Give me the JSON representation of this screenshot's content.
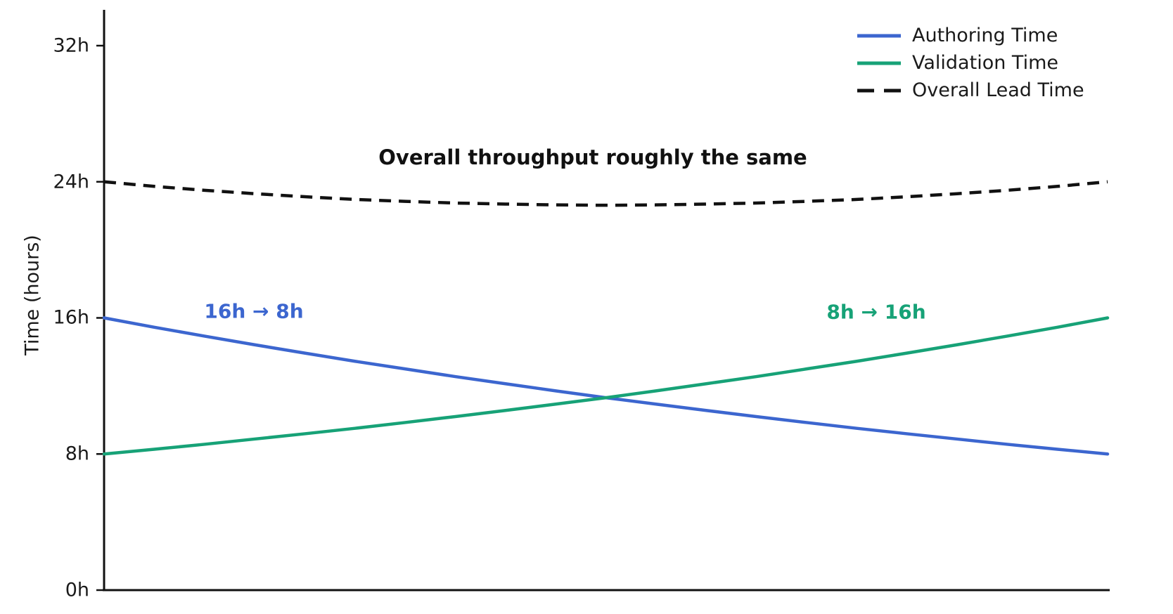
{
  "chart_data": {
    "type": "line",
    "title": "",
    "ylabel": "Time (hours)",
    "xlabel": "",
    "ylim": [
      0,
      32
    ],
    "xlim": [
      0,
      1
    ],
    "grid": false,
    "x_axis_tick_labels": [],
    "yticks": [
      {
        "value": 0,
        "label": "0h"
      },
      {
        "value": 8,
        "label": "8h"
      },
      {
        "value": 16,
        "label": "16h"
      },
      {
        "value": 24,
        "label": "24h"
      },
      {
        "value": 32,
        "label": "32h"
      }
    ],
    "x": [
      0,
      0.05,
      0.1,
      0.15,
      0.2,
      0.25,
      0.3,
      0.35,
      0.4,
      0.45,
      0.5,
      0.55,
      0.6,
      0.65,
      0.7,
      0.75,
      0.8,
      0.85,
      0.9,
      0.95,
      1
    ],
    "series": [
      {
        "name": "Authoring Time",
        "color": "#3c66cf",
        "style": "solid",
        "values": [
          16,
          15.45,
          14.93,
          14.42,
          13.93,
          13.45,
          13,
          12.55,
          12.13,
          11.71,
          11.31,
          10.93,
          10.56,
          10.2,
          9.85,
          9.51,
          9.19,
          8.88,
          8.57,
          8.28,
          8
        ]
      },
      {
        "name": "Validation Time",
        "color": "#17a277",
        "style": "solid",
        "values": [
          8,
          8.28,
          8.57,
          8.88,
          9.19,
          9.51,
          9.85,
          10.2,
          10.56,
          10.93,
          11.31,
          11.71,
          12.13,
          12.55,
          13,
          13.45,
          13.93,
          14.42,
          14.93,
          15.45,
          16
        ]
      },
      {
        "name": "Overall Lead Time",
        "color": "#111111",
        "style": "dashed",
        "values": [
          24,
          23.73,
          23.5,
          23.3,
          23.12,
          22.96,
          22.85,
          22.75,
          22.69,
          22.64,
          22.62,
          22.64,
          22.69,
          22.75,
          22.85,
          22.96,
          23.12,
          23.3,
          23.5,
          23.73,
          24
        ]
      }
    ],
    "annotations": [
      {
        "text": "Overall throughput roughly the same",
        "color": "#111111"
      },
      {
        "text": "16h → 8h",
        "color": "#3c66cf"
      },
      {
        "text": "8h → 16h",
        "color": "#17a277"
      }
    ],
    "legend": {
      "position": "top-right"
    }
  }
}
